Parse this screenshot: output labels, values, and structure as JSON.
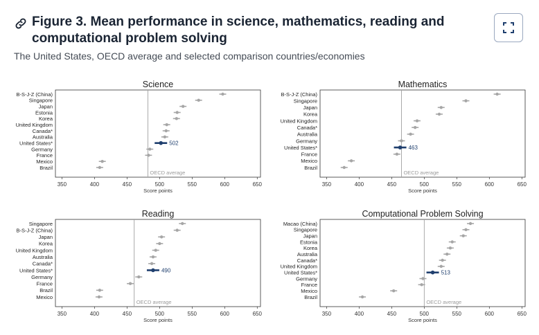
{
  "header": {
    "title": "Figure 3. Mean performance in science, mathematics, reading and computational problem solving",
    "subtitle": "The United States, OECD average and selected comparison countries/economies",
    "link_icon": "link-icon",
    "expand_icon": "expand-icon"
  },
  "colors": {
    "highlight": "#1f3f6e",
    "point": "#a6a6a6",
    "axis": "#333333",
    "oecd_line": "#a0a0a0"
  },
  "chart_data": [
    {
      "type": "scatter",
      "title": "Science",
      "xlabel": "Score points",
      "xlim": [
        340,
        655
      ],
      "ticks": [
        "350",
        "400",
        "450",
        "500",
        "550",
        "600",
        "650"
      ],
      "reference_line": {
        "label": "OECD average",
        "value": 482
      },
      "highlight": {
        "category": "United States*",
        "label": "502"
      },
      "categories": [
        "B-S-J-Z (China)",
        "Singapore",
        "Japan",
        "Estonia",
        "Korea",
        "United Kingdom",
        "Canada*",
        "Australia",
        "United States*",
        "Germany",
        "France",
        "Mexico",
        "Brazil"
      ],
      "values": [
        597,
        560,
        536,
        527,
        526,
        511,
        510,
        508,
        502,
        485,
        483,
        412,
        408
      ]
    },
    {
      "type": "scatter",
      "title": "Mathematics",
      "xlabel": "Score points",
      "xlim": [
        340,
        655
      ],
      "ticks": [
        "350",
        "400",
        "450",
        "500",
        "550",
        "600",
        "650"
      ],
      "reference_line": {
        "label": "OECD average",
        "value": 465
      },
      "highlight": {
        "category": "United States*",
        "label": "463"
      },
      "categories": [
        "B-S-J-Z (China)",
        "Singapore",
        "Japan",
        "Korea",
        "United Kingdom",
        "Canada*",
        "Australia",
        "Germany",
        "United States*",
        "France",
        "Mexico",
        "Brazil"
      ],
      "values": [
        612,
        564,
        526,
        523,
        489,
        486,
        479,
        465,
        463,
        458,
        388,
        377
      ]
    },
    {
      "type": "scatter",
      "title": "Reading",
      "xlabel": "Score points",
      "xlim": [
        340,
        655
      ],
      "ticks": [
        "350",
        "400",
        "450",
        "500",
        "550",
        "600",
        "650"
      ],
      "reference_line": {
        "label": "OECD average",
        "value": 461
      },
      "highlight": {
        "category": "United States*",
        "label": "490"
      },
      "categories": [
        "Singapore",
        "B-S-J-Z (China)",
        "Japan",
        "Korea",
        "United Kingdom",
        "Australia",
        "Canada*",
        "United States*",
        "Germany",
        "France",
        "Brazil",
        "Mexico"
      ],
      "values": [
        535,
        527,
        503,
        500,
        494,
        490,
        488,
        490,
        468,
        455,
        408,
        407
      ]
    },
    {
      "type": "scatter",
      "title": "Computational Problem Solving",
      "xlabel": "Score points",
      "xlim": [
        340,
        655
      ],
      "ticks": [
        "350",
        "400",
        "450",
        "500",
        "550",
        "600",
        "650"
      ],
      "reference_line": {
        "label": "OECD average",
        "value": 500
      },
      "highlight": {
        "category": "United States*",
        "label": "513"
      },
      "categories": [
        "Macao (China)",
        "Singapore",
        "Japan",
        "Estonia",
        "Korea",
        "Australia",
        "Canada*",
        "United Kingdom",
        "United States*",
        "Germany",
        "France",
        "Mexico",
        "Brazil"
      ],
      "values": [
        571,
        564,
        560,
        543,
        540,
        535,
        528,
        526,
        513,
        498,
        496,
        453,
        405
      ]
    }
  ]
}
